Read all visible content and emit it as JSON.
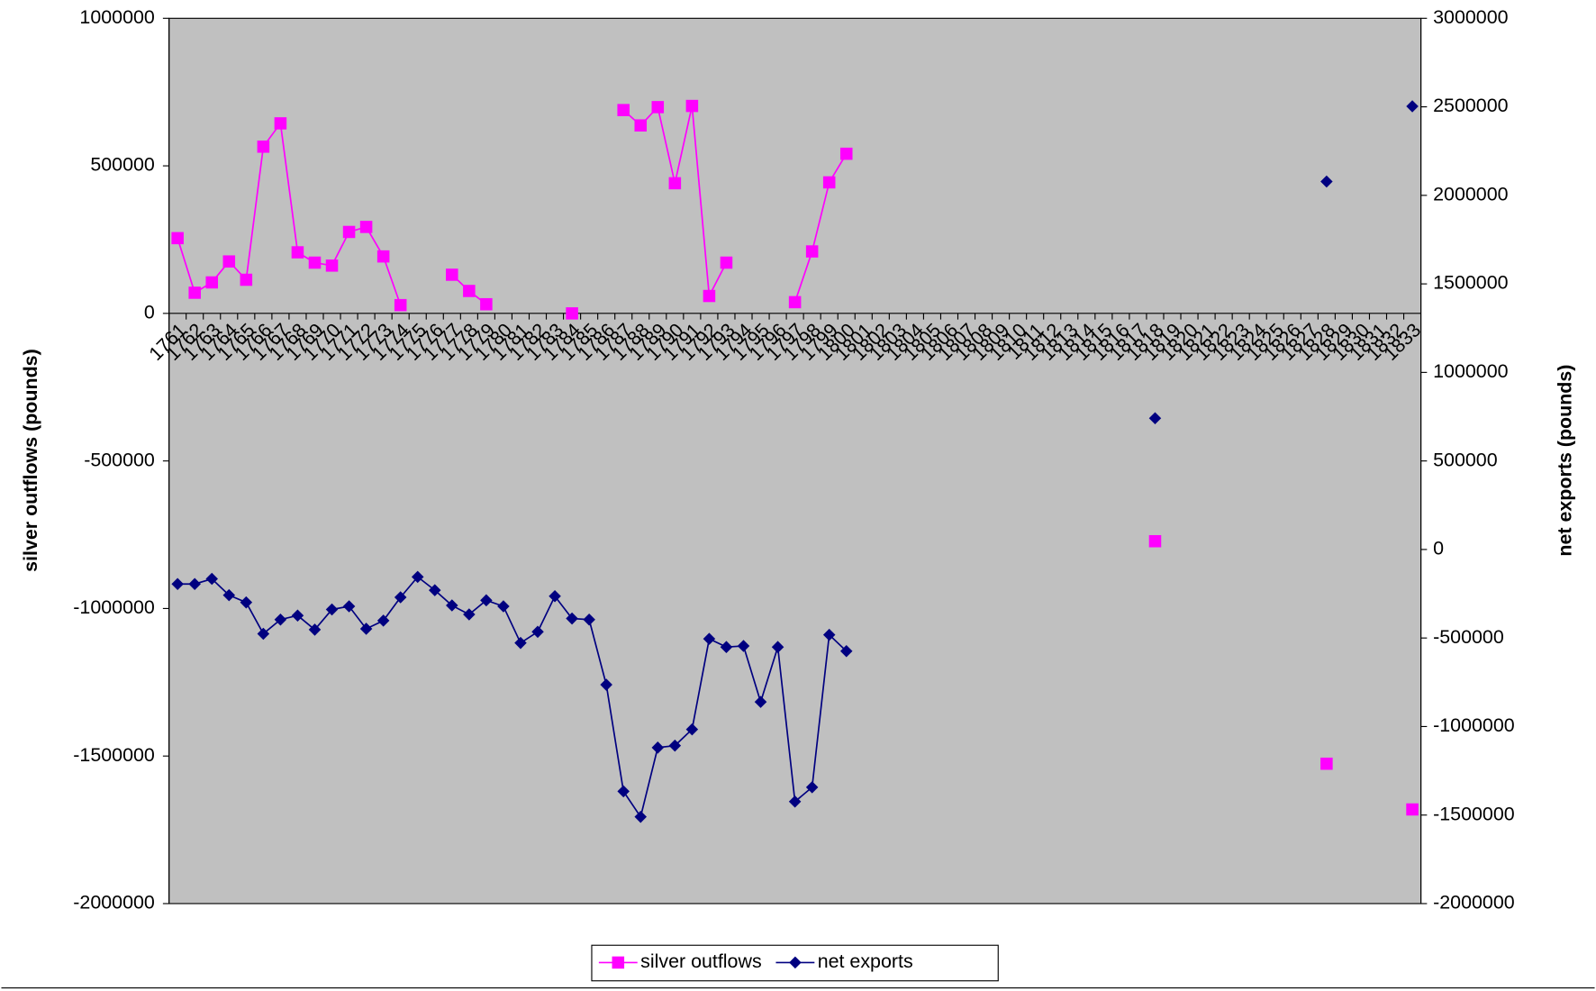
{
  "chart_data": {
    "type": "line",
    "y_label": "silver outflows (pounds)",
    "y2_label": "net exports (pounds)",
    "categories": [
      "1761",
      "1762",
      "1763",
      "1764",
      "1765",
      "1766",
      "1767",
      "1768",
      "1769",
      "1770",
      "1771",
      "1772",
      "1773",
      "1774",
      "1775",
      "1776",
      "1777",
      "1778",
      "1779",
      "1780",
      "1781",
      "1782",
      "1783",
      "1784",
      "1785",
      "1786",
      "1787",
      "1788",
      "1789",
      "1790",
      "1791",
      "1792",
      "1793",
      "1794",
      "1795",
      "1796",
      "1797",
      "1798",
      "1799",
      "1800",
      "1801",
      "1802",
      "1803",
      "1804",
      "1805",
      "1806",
      "1807",
      "1808",
      "1809",
      "1810",
      "1811",
      "1812",
      "1813",
      "1814",
      "1815",
      "1816",
      "1817",
      "1818",
      "1819",
      "1820",
      "1821",
      "1822",
      "1823",
      "1824",
      "1825",
      "1826",
      "1827",
      "1828",
      "1829",
      "1830",
      "1831",
      "1832",
      "1833"
    ],
    "series": [
      {
        "name": "silver outflows",
        "color": "#ff00ff",
        "marker": "square",
        "axis": "y",
        "values": [
          255000,
          70000,
          105000,
          176000,
          114000,
          565000,
          644000,
          207000,
          172000,
          162000,
          276000,
          293000,
          193000,
          28000,
          null,
          null,
          131000,
          76000,
          31000,
          null,
          null,
          null,
          null,
          0,
          null,
          null,
          689000,
          637000,
          699000,
          441000,
          703000,
          59000,
          172000,
          null,
          null,
          null,
          38000,
          210000,
          444000,
          541000,
          null,
          null,
          null,
          null,
          null,
          null,
          null,
          null,
          null,
          null,
          null,
          null,
          null,
          null,
          null,
          null,
          null,
          -772000,
          null,
          null,
          null,
          null,
          null,
          null,
          null,
          null,
          null,
          -1526000,
          null,
          null,
          null,
          null,
          -1681000
        ]
      },
      {
        "name": "net exports",
        "color": "#000080",
        "marker": "diamond",
        "axis": "y2",
        "values": [
          -195000,
          -195000,
          -166000,
          -258000,
          -299000,
          -476000,
          -396000,
          -373000,
          -453000,
          -339000,
          -321000,
          -448000,
          -402000,
          -270000,
          -155000,
          -230000,
          -316000,
          -367000,
          -287000,
          -321000,
          -528000,
          -465000,
          -264000,
          -390000,
          -396000,
          -764000,
          -1366000,
          -1510000,
          -1119000,
          -1108000,
          -1016000,
          -505000,
          -551000,
          -545000,
          -861000,
          -551000,
          -1424000,
          -1343000,
          -482000,
          -574000,
          null,
          null,
          null,
          null,
          null,
          null,
          null,
          null,
          null,
          null,
          null,
          null,
          null,
          null,
          null,
          null,
          null,
          741000,
          null,
          null,
          null,
          null,
          null,
          null,
          null,
          null,
          null,
          2078000,
          null,
          null,
          null,
          null,
          2503000
        ]
      }
    ],
    "ylim": [
      -2000000,
      1000000
    ],
    "yticks": [
      -2000000,
      -1500000,
      -1000000,
      -500000,
      0,
      500000,
      1000000
    ],
    "y2lim": [
      -2000000,
      3000000
    ],
    "y2ticks": [
      -2000000,
      -1500000,
      -1000000,
      -500000,
      0,
      500000,
      1000000,
      1500000,
      2000000,
      2500000,
      3000000
    ],
    "plot_background": "#c0c0c0",
    "legend": "bottom"
  }
}
